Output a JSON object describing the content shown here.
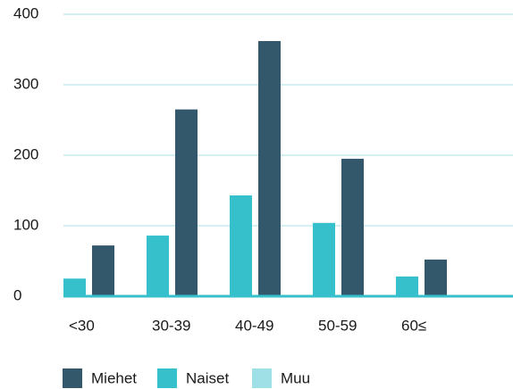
{
  "chart_data": {
    "type": "bar",
    "categories": [
      "<30",
      "30-39",
      "40-49",
      "50-59",
      "60≤"
    ],
    "series": [
      {
        "name": "Miehet",
        "color": "#34586b",
        "values": [
          72,
          265,
          362,
          195,
          52
        ]
      },
      {
        "name": "Naiset",
        "color": "#35c0cc",
        "values": [
          25,
          86,
          143,
          104,
          28
        ]
      },
      {
        "name": "Muu",
        "color": "#9ee0e6",
        "values": [
          0,
          0,
          0,
          0,
          0
        ]
      }
    ],
    "ylim": [
      0,
      400
    ],
    "yticks": [
      0,
      100,
      200,
      300,
      400
    ],
    "grid": true,
    "legend": "bottom"
  }
}
